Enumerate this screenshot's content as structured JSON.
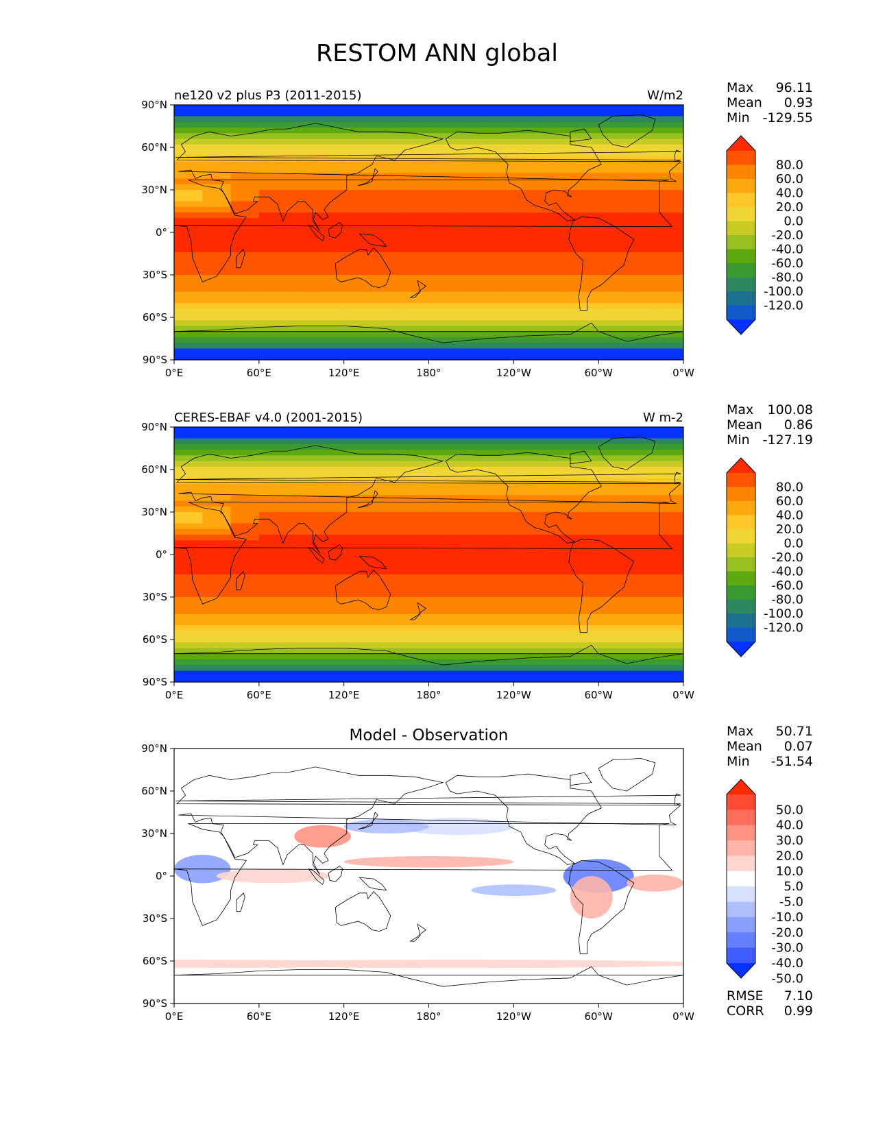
{
  "title": "RESTOM ANN global",
  "lon_ticks": [
    "0°E",
    "60°E",
    "120°E",
    "180°",
    "120°W",
    "60°W",
    "0°W"
  ],
  "lat_ticks": [
    "90°N",
    "60°N",
    "30°N",
    "0°",
    "30°S",
    "60°S",
    "90°S"
  ],
  "panels": [
    {
      "id": "model",
      "left_title": "ne120 v2 plus P3 (2011-2015)",
      "center_title": "",
      "units": "W/m2",
      "stats": [
        {
          "label": "Max",
          "value": "96.11"
        },
        {
          "label": "Mean",
          "value": "0.93"
        },
        {
          "label": "Min",
          "value": "-129.55"
        }
      ],
      "colorbar": {
        "labels": [
          "80.0",
          "60.0",
          "40.0",
          "20.0",
          "0.0",
          "-20.0",
          "-40.0",
          "-60.0",
          "-80.0",
          "-100.0",
          "-120.0"
        ],
        "colors": [
          "#ff2a00",
          "#ff5500",
          "#ff8400",
          "#ffa70e",
          "#ffc82a",
          "#f0d535",
          "#c9cb25",
          "#98c01e",
          "#5ea810",
          "#3c9a32",
          "#2d8860",
          "#1e7090",
          "#1158c8",
          "#0532ff"
        ]
      },
      "diff": false
    },
    {
      "id": "obs",
      "left_title": "CERES-EBAF v4.0 (2001-2015)",
      "center_title": "",
      "units": "W m-2",
      "stats": [
        {
          "label": "Max",
          "value": "100.08"
        },
        {
          "label": "Mean",
          "value": "0.86"
        },
        {
          "label": "Min",
          "value": "-127.19"
        }
      ],
      "colorbar": {
        "labels": [
          "80.0",
          "60.0",
          "40.0",
          "20.0",
          "0.0",
          "-20.0",
          "-40.0",
          "-60.0",
          "-80.0",
          "-100.0",
          "-120.0"
        ],
        "colors": [
          "#ff2a00",
          "#ff5500",
          "#ff8400",
          "#ffa70e",
          "#ffc82a",
          "#f0d535",
          "#c9cb25",
          "#98c01e",
          "#5ea810",
          "#3c9a32",
          "#2d8860",
          "#1e7090",
          "#1158c8",
          "#0532ff"
        ]
      },
      "diff": false
    },
    {
      "id": "diff",
      "left_title": "",
      "center_title": "Model - Observation",
      "units": "",
      "stats": [
        {
          "label": "Max",
          "value": "50.71"
        },
        {
          "label": "Mean",
          "value": "0.07"
        },
        {
          "label": "Min",
          "value": "-51.54"
        }
      ],
      "extra_stats": [
        {
          "label": "RMSE",
          "value": "7.10"
        },
        {
          "label": "CORR",
          "value": "0.99"
        }
      ],
      "colorbar": {
        "labels": [
          "50.0",
          "40.0",
          "30.0",
          "20.0",
          "10.0",
          "5.0",
          "-5.0",
          "-10.0",
          "-20.0",
          "-30.0",
          "-40.0",
          "-50.0"
        ],
        "colors": [
          "#ff2a00",
          "#ff4a33",
          "#ff6e5c",
          "#ff9282",
          "#ffb4a8",
          "#ffd6d0",
          "#ffffff",
          "#d8e0ff",
          "#b0c0ff",
          "#8aa0ff",
          "#6480ff",
          "#3e5cff",
          "#0532ff"
        ]
      },
      "diff": true
    }
  ]
}
